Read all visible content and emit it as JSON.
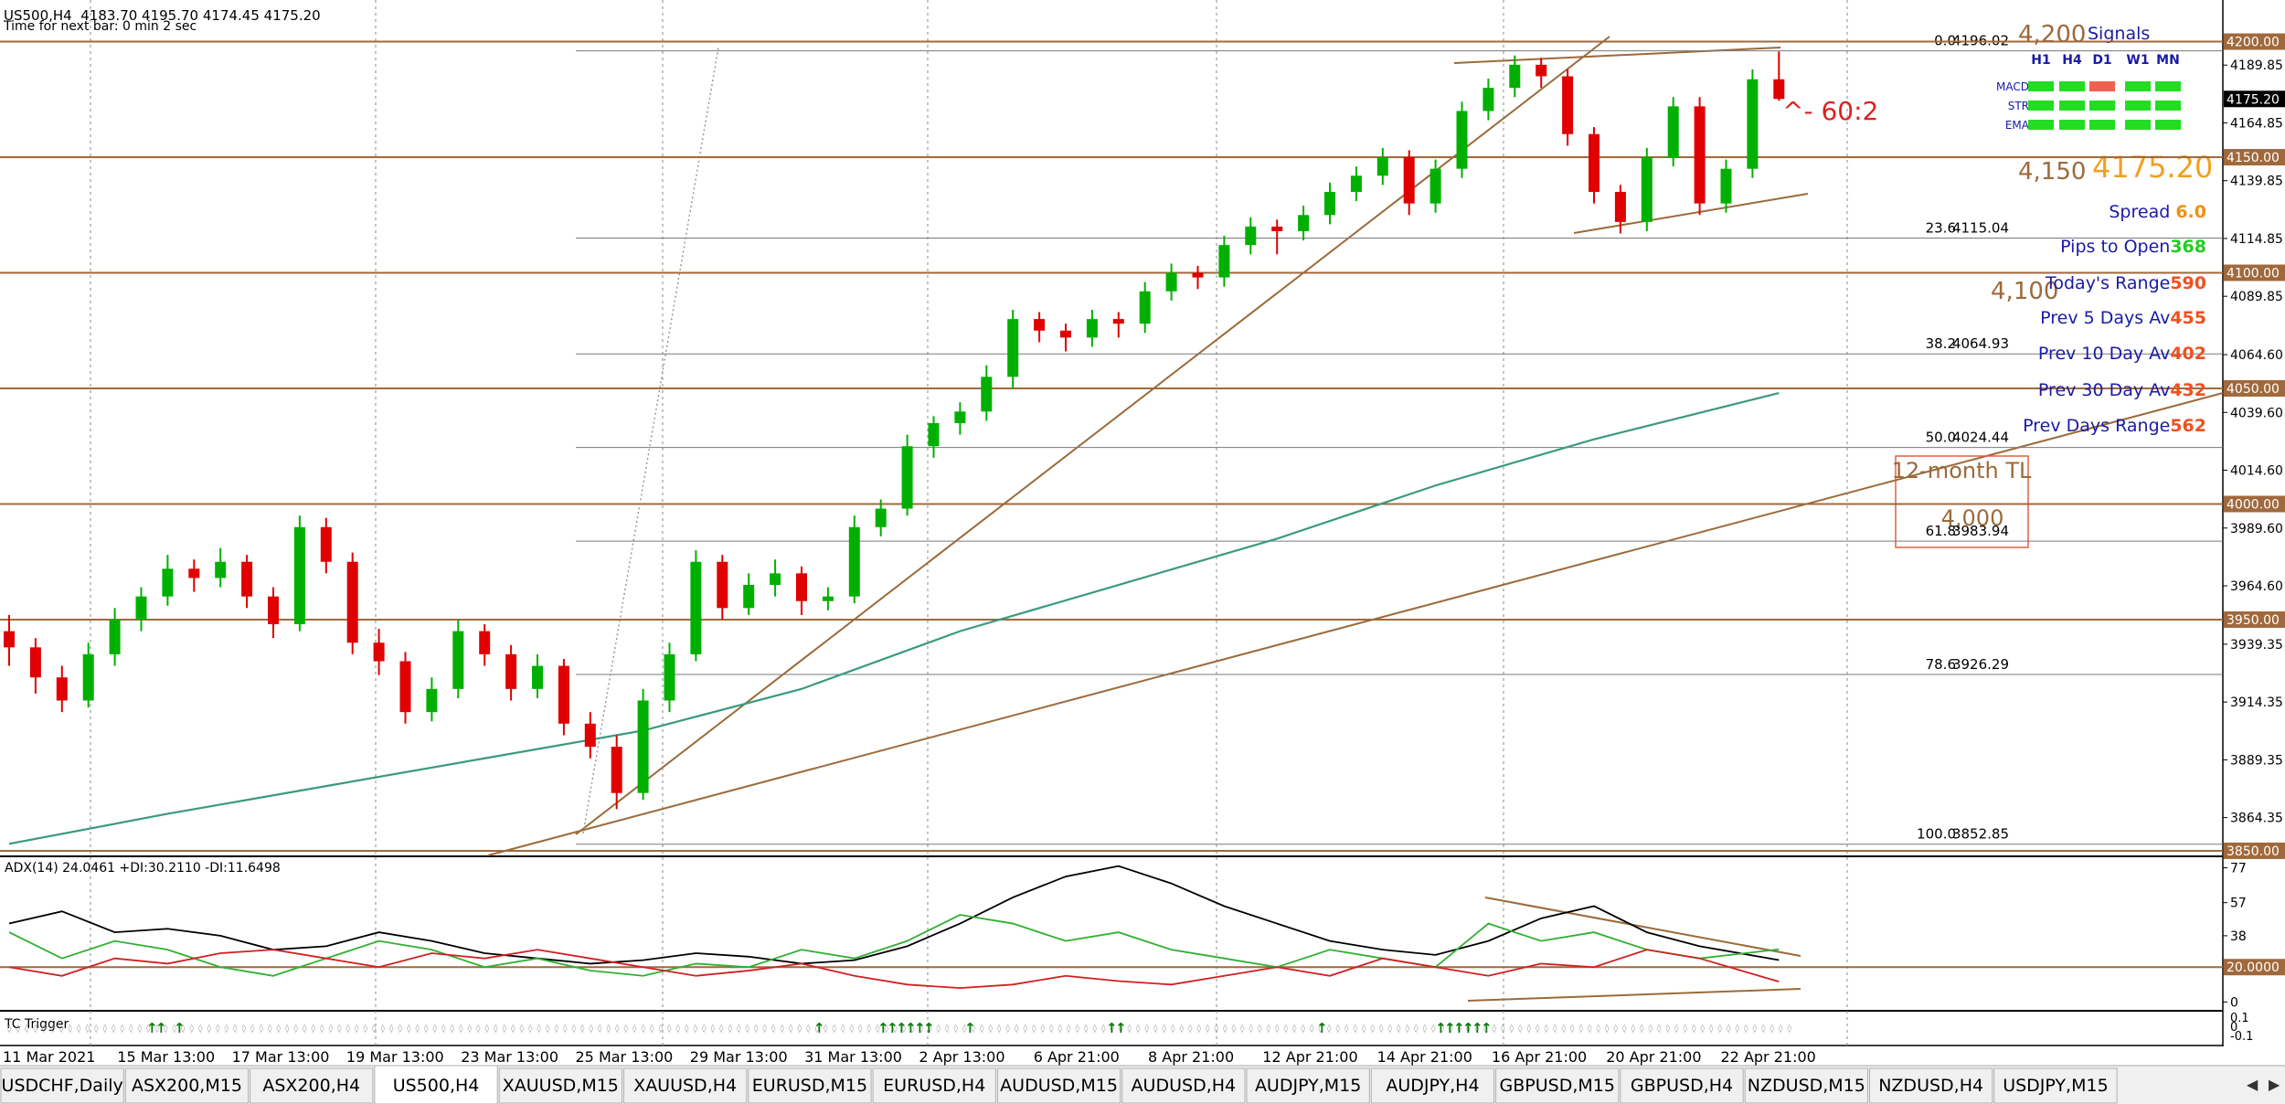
{
  "title": "US500,H4  4183.70 4195.70 4174.45 4175.20",
  "subtitle": "Time for next bar: 0 min 2 sec",
  "chart_data": [
    {
      "type": "candlestick",
      "up_color": "#00b000",
      "down_color": "#e00000",
      "ylim": [
        3848,
        4218
      ],
      "yticks": [
        4189.85,
        4164.85,
        4139.85,
        4114.85,
        4089.85,
        {
          "value": 4064.6,
          "label": "4064.60"
        },
        {
          "value": 4039.6,
          "label": "4039.60"
        },
        {
          "value": 4014.6,
          "label": "4014.60"
        },
        {
          "value": 3989.6,
          "label": "3989.60"
        },
        {
          "value": 3964.6,
          "label": "3964.60"
        },
        3939.35,
        3914.35,
        3889.35,
        3864.35
      ],
      "levels": [
        {
          "value": 4200,
          "label": "4200.00"
        },
        {
          "value": 4150,
          "label": "4150.00"
        },
        {
          "value": 4100,
          "label": "4100.00"
        },
        {
          "value": 4050,
          "label": "4050.00"
        },
        {
          "value": 4000,
          "label": "4000.00"
        },
        {
          "value": 3950,
          "label": "3950.00"
        },
        {
          "value": 3850,
          "label": "3850.00"
        }
      ],
      "level_color": "#a0693c",
      "current_price": {
        "value": 4175.2,
        "label": "4175.20"
      },
      "fib": [
        {
          "ratio": "0.0",
          "price": 4196.02
        },
        {
          "ratio": "23.6",
          "price": 4115.04
        },
        {
          "ratio": "38.2",
          "price": 4064.93
        },
        {
          "ratio": "50.0",
          "price": 4024.44
        },
        {
          "ratio": "61.8",
          "price": 3983.94
        },
        {
          "ratio": "78.6",
          "price": 3926.29
        },
        {
          "ratio": "100.0",
          "price": 3852.85
        }
      ],
      "ma": {
        "color": "#3a9a80",
        "x": [
          0,
          6,
          12,
          18,
          24,
          30,
          36,
          42,
          48,
          54,
          60,
          67
        ],
        "values": [
          3853,
          3866,
          3878,
          3890,
          3902,
          3920,
          3945,
          3965,
          3985,
          4008,
          4028,
          4048
        ]
      },
      "candles": [
        [
          3945,
          3952,
          3930,
          3938
        ],
        [
          3938,
          3942,
          3918,
          3925
        ],
        [
          3925,
          3930,
          3910,
          3915
        ],
        [
          3915,
          3940,
          3912,
          3935
        ],
        [
          3935,
          3955,
          3930,
          3950
        ],
        [
          3950,
          3964,
          3945,
          3960
        ],
        [
          3960,
          3978,
          3956,
          3972
        ],
        [
          3972,
          3976,
          3962,
          3968
        ],
        [
          3968,
          3981,
          3964,
          3975
        ],
        [
          3975,
          3978,
          3955,
          3960
        ],
        [
          3960,
          3964,
          3942,
          3948
        ],
        [
          3948,
          3995,
          3945,
          3990
        ],
        [
          3990,
          3994,
          3970,
          3975
        ],
        [
          3975,
          3979,
          3935,
          3940
        ],
        [
          3940,
          3946,
          3926,
          3932
        ],
        [
          3932,
          3936,
          3905,
          3910
        ],
        [
          3910,
          3925,
          3906,
          3920
        ],
        [
          3920,
          3950,
          3916,
          3945
        ],
        [
          3945,
          3948,
          3930,
          3935
        ],
        [
          3935,
          3939,
          3915,
          3920
        ],
        [
          3920,
          3935,
          3916,
          3930
        ],
        [
          3930,
          3933,
          3900,
          3905
        ],
        [
          3905,
          3910,
          3890,
          3895
        ],
        [
          3895,
          3900,
          3868,
          3875
        ],
        [
          3875,
          3920,
          3872,
          3915
        ],
        [
          3915,
          3940,
          3910,
          3935
        ],
        [
          3935,
          3980,
          3932,
          3975
        ],
        [
          3975,
          3978,
          3950,
          3955
        ],
        [
          3955,
          3970,
          3952,
          3965
        ],
        [
          3965,
          3976,
          3960,
          3970
        ],
        [
          3970,
          3973,
          3952,
          3958
        ],
        [
          3958,
          3964,
          3954,
          3960
        ],
        [
          3960,
          3995,
          3957,
          3990
        ],
        [
          3990,
          4002,
          3986,
          3998
        ],
        [
          3998,
          4030,
          3995,
          4025
        ],
        [
          4025,
          4038,
          4020,
          4035
        ],
        [
          4035,
          4044,
          4030,
          4040
        ],
        [
          4040,
          4060,
          4036,
          4055
        ],
        [
          4055,
          4084,
          4050,
          4080
        ],
        [
          4080,
          4083,
          4070,
          4075
        ],
        [
          4075,
          4078,
          4066,
          4072
        ],
        [
          4072,
          4084,
          4068,
          4080
        ],
        [
          4080,
          4083,
          4072,
          4078
        ],
        [
          4078,
          4096,
          4074,
          4092
        ],
        [
          4092,
          4104,
          4088,
          4100
        ],
        [
          4100,
          4103,
          4093,
          4098
        ],
        [
          4098,
          4116,
          4094,
          4112
        ],
        [
          4112,
          4124,
          4108,
          4120
        ],
        [
          4120,
          4123,
          4108,
          4118
        ],
        [
          4118,
          4129,
          4114,
          4125
        ],
        [
          4125,
          4139,
          4121,
          4135
        ],
        [
          4135,
          4146,
          4131,
          4142
        ],
        [
          4142,
          4154,
          4138,
          4150
        ],
        [
          4150,
          4153,
          4125,
          4130
        ],
        [
          4130,
          4149,
          4126,
          4145
        ],
        [
          4145,
          4174,
          4141,
          4170
        ],
        [
          4170,
          4184,
          4166,
          4180
        ],
        [
          4180,
          4194,
          4176,
          4190
        ],
        [
          4190,
          4193,
          4180,
          4185
        ],
        [
          4185,
          4188,
          4155,
          4160
        ],
        [
          4160,
          4163,
          4130,
          4135
        ],
        [
          4135,
          4138,
          4117,
          4122
        ],
        [
          4122,
          4154,
          4118,
          4150
        ],
        [
          4150,
          4176,
          4146,
          4172
        ],
        [
          4172,
          4176,
          4125,
          4130
        ],
        [
          4130,
          4149,
          4126,
          4145
        ],
        [
          4145,
          4188,
          4141,
          4183.7
        ],
        [
          4183.7,
          4195.7,
          4174.45,
          4175.2
        ]
      ]
    },
    {
      "type": "line",
      "title": "ADX(14) 24.0461 +DI:30.2110 -DI:11.6498",
      "ylim": [
        -4,
        82
      ],
      "yticks": [
        77,
        57,
        38,
        0
      ],
      "level": {
        "value": 20,
        "label": "20.0000"
      },
      "x": [
        0,
        2,
        4,
        6,
        8,
        10,
        12,
        14,
        16,
        18,
        20,
        22,
        24,
        26,
        28,
        30,
        32,
        34,
        36,
        38,
        40,
        42,
        44,
        46,
        48,
        50,
        52,
        54,
        56,
        58,
        60,
        62,
        64,
        67
      ],
      "series": [
        {
          "name": "ADX",
          "color": "#000000",
          "values": [
            45,
            52,
            40,
            42,
            38,
            30,
            32,
            40,
            35,
            28,
            25,
            22,
            24,
            28,
            26,
            22,
            24,
            32,
            45,
            60,
            72,
            78,
            68,
            55,
            45,
            35,
            30,
            27,
            35,
            48,
            55,
            40,
            32,
            24.0461
          ]
        },
        {
          "name": "+DI",
          "color": "#30b030",
          "values": [
            40,
            25,
            35,
            30,
            20,
            15,
            25,
            35,
            30,
            20,
            25,
            18,
            15,
            22,
            20,
            30,
            25,
            35,
            50,
            45,
            35,
            40,
            30,
            25,
            20,
            30,
            25,
            20,
            45,
            35,
            40,
            30,
            25,
            30.211
          ]
        },
        {
          "name": "-DI",
          "color": "#d02020",
          "values": [
            20,
            15,
            25,
            22,
            28,
            30,
            25,
            20,
            28,
            25,
            30,
            25,
            20,
            15,
            18,
            22,
            15,
            10,
            8,
            10,
            15,
            12,
            10,
            15,
            20,
            15,
            25,
            20,
            15,
            22,
            20,
            30,
            25,
            11.6498
          ]
        }
      ]
    }
  ],
  "tc_trigger": {
    "label": "TC Trigger",
    "ticks": [
      "0.1",
      "0",
      "-0.1"
    ]
  },
  "x_labels": [
    "11 Mar 2021",
    "15 Mar 13:00",
    "17 Mar 13:00",
    "19 Mar 13:00",
    "23 Mar 13:00",
    "25 Mar 13:00",
    "29 Mar 13:00",
    "31 Mar 13:00",
    "2 Apr 13:00",
    "6 Apr 21:00",
    "8 Apr 21:00",
    "12 Apr 21:00",
    "14 Apr 21:00",
    "16 Apr 21:00",
    "20 Apr 21:00",
    "22 Apr 21:00"
  ],
  "notes": {
    "level_4200": "4,200",
    "level_4150": "4,150",
    "level_4100": "4,100",
    "level_4000": "4,000",
    "price": "4175.20",
    "ratio": "^- 60:2",
    "tl": "12-month TL"
  },
  "signals": {
    "title": "Signals",
    "columns": [
      "H1",
      "H4",
      "D1",
      "W1",
      "MN"
    ],
    "rows": [
      {
        "name": "MACD",
        "colors": [
          "#22dd22",
          "#22dd22",
          "#f06050",
          "#22dd22",
          "#22dd22"
        ]
      },
      {
        "name": "STR",
        "colors": [
          "#22dd22",
          "#22dd22",
          "#22dd22",
          "#22dd22",
          "#22dd22"
        ]
      },
      {
        "name": "EMA",
        "colors": [
          "#22dd22",
          "#22dd22",
          "#22dd22",
          "#22dd22",
          "#22dd22"
        ]
      }
    ]
  },
  "info": [
    {
      "label": "Spread ",
      "value": "6.0",
      "color": "#f09010"
    },
    {
      "label": "Pips to Open",
      "value": "368",
      "color": "#22cc22"
    },
    {
      "label": "Today's Range",
      "value": "590",
      "color": "#f05020"
    },
    {
      "label": "Prev 5 Days Av",
      "value": "455",
      "color": "#f05020"
    },
    {
      "label": "Prev 10 Day Av",
      "value": "402",
      "color": "#f05020"
    },
    {
      "label": "Prev 30 Day Av",
      "value": "432",
      "color": "#f05020"
    },
    {
      "label": "Prev Days Range",
      "value": "562",
      "color": "#f05020"
    }
  ],
  "tabs": [
    "USDCHF,Daily",
    "ASX200,M15",
    "ASX200,H4",
    "US500,H4",
    "XAUUSD,M15",
    "XAUUSD,H4",
    "EURUSD,M15",
    "EURUSD,H4",
    "AUDUSD,M15",
    "AUDUSD,H4",
    "AUDJPY,M15",
    "AUDJPY,H4",
    "GBPUSD,M15",
    "GBPUSD,H4",
    "NZDUSD,M15",
    "NZDUSD,H4",
    "USDJPY,M15"
  ],
  "active_tab": "US500,H4"
}
